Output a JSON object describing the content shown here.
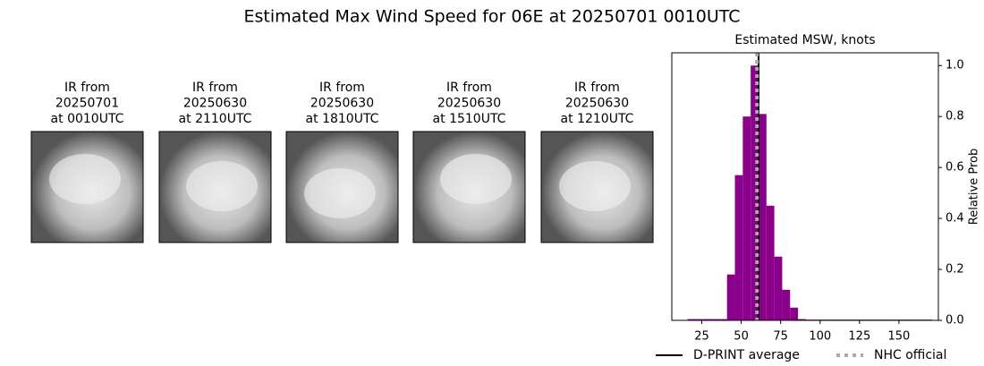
{
  "title": "Estimated Max Wind Speed for 06E at 20250701 0010UTC",
  "panels": [
    {
      "title_lines": [
        "IR from",
        "20250701",
        "at 0010UTC"
      ]
    },
    {
      "title_lines": [
        "IR from",
        "20250630",
        "at 2110UTC"
      ]
    },
    {
      "title_lines": [
        "IR from",
        "20250630",
        "at 1810UTC"
      ]
    },
    {
      "title_lines": [
        "IR from",
        "20250630",
        "at 1510UTC"
      ]
    },
    {
      "title_lines": [
        "IR from",
        "20250630",
        "at 1210UTC"
      ]
    }
  ],
  "chart_data": {
    "type": "histogram",
    "title": "Estimated MSW, knots",
    "y_label": "Relative Prob",
    "color": "#8b008b",
    "bins": [
      16,
      21,
      26,
      31,
      36,
      41,
      46,
      51,
      56,
      61,
      66,
      71,
      76,
      81,
      86,
      91,
      96,
      101,
      106,
      111,
      116,
      121,
      126,
      131,
      136,
      141,
      146,
      151,
      156,
      161,
      166,
      171
    ],
    "values": [
      0.005,
      0.005,
      0.005,
      0.005,
      0.005,
      0.18,
      0.57,
      0.8,
      1.0,
      0.81,
      0.45,
      0.25,
      0.12,
      0.05,
      0.005,
      0.003,
      0.003,
      0.003,
      0.003,
      0.003,
      0.003,
      0.003,
      0.003,
      0.003,
      0.003,
      0.003,
      0.003,
      0.003,
      0.003,
      0.003,
      0.003
    ],
    "xlim": [
      6,
      175
    ],
    "ylim": [
      0,
      1.05
    ],
    "xticks": [
      25,
      50,
      75,
      100,
      125,
      150
    ],
    "yticks": [
      {
        "value": 0,
        "label": "0.0"
      },
      {
        "value": 0.2,
        "label": "0.2"
      },
      {
        "value": 0.4,
        "label": "0.4"
      },
      {
        "value": 0.6,
        "label": "0.6"
      },
      {
        "value": 0.8,
        "label": "0.8"
      },
      {
        "value": 1.0,
        "label": "1.0"
      }
    ],
    "reference_lines": [
      {
        "name": "D-PRINT average",
        "value": 61,
        "color": "#000000",
        "style": "solid"
      },
      {
        "name": "NHC official",
        "value": 60,
        "color": "#aaaaaa",
        "style": "dotted"
      }
    ]
  }
}
